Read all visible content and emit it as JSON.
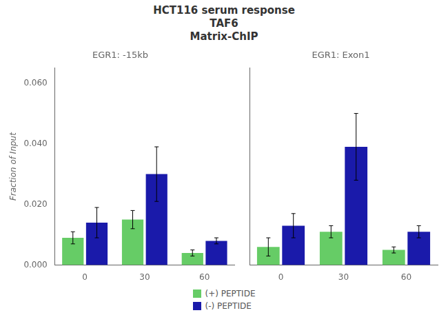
{
  "title": [
    "HCT116 serum response",
    "TAF6",
    "Matrix-ChIP"
  ],
  "legend": "bottom",
  "chart_data": [
    {
      "type": "bar",
      "title": "EGR1: -15kb",
      "ylabel": "Fraction of Input",
      "categories": [
        "0",
        "30",
        "60"
      ],
      "series": [
        {
          "name": "(+) PEPTIDE",
          "color": "#66cc66",
          "values": [
            0.009,
            0.015,
            0.004
          ],
          "errors": [
            0.002,
            0.003,
            0.001
          ]
        },
        {
          "name": "(-) PEPTIDE",
          "color": "#1a1aaa",
          "values": [
            0.014,
            0.03,
            0.008
          ],
          "errors": [
            0.005,
            0.009,
            0.001
          ]
        }
      ],
      "ylim": [
        0.0,
        0.065
      ],
      "yticks": [
        {
          "value": 0.0,
          "label": "0.000"
        },
        {
          "value": 0.02,
          "label": "0.020"
        },
        {
          "value": 0.04,
          "label": "0.040"
        },
        {
          "value": 0.06,
          "label": "0.060"
        }
      ],
      "grid": false
    },
    {
      "type": "bar",
      "title": "EGR1: Exon1",
      "categories": [
        "0",
        "30",
        "60"
      ],
      "series": [
        {
          "name": "(+) PEPTIDE",
          "color": "#66cc66",
          "values": [
            0.006,
            0.011,
            0.005
          ],
          "errors": [
            0.003,
            0.002,
            0.001
          ]
        },
        {
          "name": "(-) PEPTIDE",
          "color": "#1a1aaa",
          "values": [
            0.013,
            0.039,
            0.011
          ],
          "errors": [
            0.004,
            0.011,
            0.002
          ]
        }
      ],
      "ylim": [
        0.0,
        0.065
      ],
      "yticks": [
        {
          "value": 0.0,
          "label": "0.000"
        },
        {
          "value": 0.02,
          "label": "0.020"
        },
        {
          "value": 0.04,
          "label": "0.040"
        },
        {
          "value": 0.06,
          "label": "0.060"
        }
      ],
      "grid": false,
      "tick_labels": "x"
    }
  ]
}
